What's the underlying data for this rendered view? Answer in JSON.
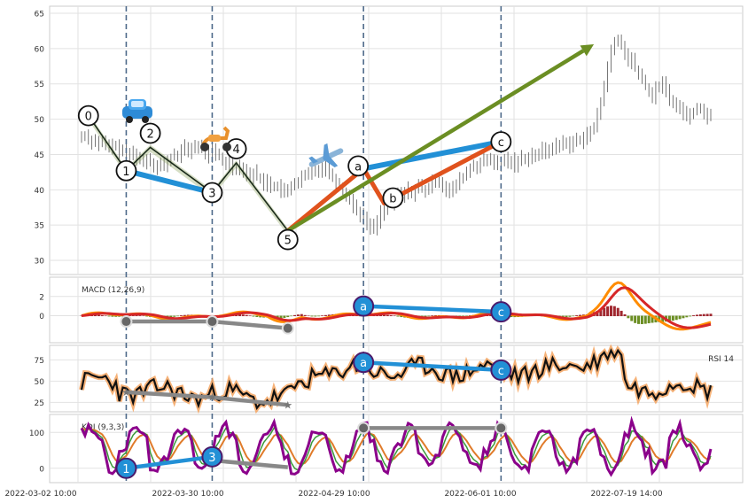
{
  "chart_data": {
    "type": "candlestick",
    "x_ticks": [
      "2022-03-02 10:00",
      "2022-03-30 10:00",
      "2022-04-29 10:00",
      "2022-06-01 10:00",
      "2022-07-19 14:00"
    ],
    "price": {
      "ylim": [
        28,
        66
      ],
      "yticks": [
        30,
        35,
        40,
        45,
        50,
        55,
        60,
        65
      ],
      "series": [
        47.5,
        47.8,
        47.2,
        46.8,
        47.0,
        46.5,
        46.9,
        46.2,
        45.8,
        46.4,
        46.0,
        45.5,
        45.9,
        45.2,
        44.8,
        45.3,
        44.6,
        44.2,
        43.9,
        44.5,
        44.0,
        43.6,
        43.2,
        43.8,
        43.4,
        43.9,
        44.6,
        45.1,
        44.7,
        45.5,
        46.0,
        45.4,
        45.9,
        46.3,
        45.7,
        46.1,
        45.3,
        44.9,
        45.6,
        45.0,
        44.6,
        44.1,
        43.5,
        43.9,
        43.2,
        42.8,
        43.4,
        42.9,
        42.3,
        41.8,
        42.5,
        41.9,
        41.4,
        40.8,
        41.3,
        40.6,
        40.2,
        40.7,
        39.9,
        39.4,
        40.0,
        40.6,
        41.2,
        40.8,
        41.7,
        42.3,
        41.9,
        42.6,
        43.1,
        42.7,
        43.4,
        43.0,
        42.4,
        41.8,
        41.2,
        40.5,
        39.9,
        39.2,
        38.6,
        37.8,
        37.1,
        36.5,
        35.8,
        35.2,
        34.8,
        34.5,
        35.6,
        36.8,
        37.5,
        38.2,
        37.9,
        38.8,
        39.4,
        38.9,
        39.6,
        40.1,
        39.5,
        40.0,
        40.6,
        40.1,
        39.7,
        40.3,
        41.0,
        41.6,
        41.2,
        40.6,
        40.1,
        39.5,
        40.2,
        40.8,
        41.4,
        41.9,
        42.5,
        43.0,
        43.6,
        43.2,
        43.8,
        44.3,
        43.9,
        44.5,
        43.8,
        43.2,
        43.9,
        44.4,
        43.8,
        44.2,
        43.6,
        44.1,
        44.6,
        44.2,
        44.8,
        45.1,
        44.6,
        45.2,
        45.7,
        45.3,
        45.8,
        46.2,
        45.9,
        46.4,
        46.9,
        46.5,
        46.1,
        46.8,
        47.2,
        46.9,
        47.5,
        47.9,
        48.3,
        48.8,
        50.5,
        52.5,
        55.0,
        57.5,
        59.5,
        60.8,
        61.2,
        60.5,
        59.2,
        58.0,
        58.6,
        57.2,
        56.4,
        55.4,
        54.6,
        53.8,
        53.2,
        54.2,
        54.8,
        55.0,
        54.1,
        53.0,
        52.2,
        51.4,
        51.8,
        51.0,
        50.2,
        50.6,
        51.2,
        51.8,
        51.4,
        50.8,
        50.4,
        51.0
      ]
    },
    "waves": [
      {
        "label": "0",
        "x": 2,
        "y": 50.5
      },
      {
        "label": "1",
        "x": 13,
        "y": 42.7
      },
      {
        "label": "2",
        "x": 20,
        "y": 46.0
      },
      {
        "label": "3",
        "x": 38,
        "y": 39.6
      },
      {
        "label": "4",
        "x": 45,
        "y": 43.8
      },
      {
        "label": "5",
        "x": 60,
        "y": 34.2
      },
      {
        "label": "a",
        "x": 82,
        "y": 43.0
      },
      {
        "label": "b",
        "x": 88,
        "y": 38.1
      },
      {
        "label": "c",
        "x": 122,
        "y": 46.8
      }
    ],
    "macd": {
      "label": "MACD (12,26,9)",
      "ylim": [
        -2.8,
        4.0
      ],
      "yticks": [
        0,
        2
      ]
    },
    "rsi": {
      "label": "RSI 14",
      "ylim": [
        14,
        92
      ],
      "yticks": [
        25,
        50,
        75
      ]
    },
    "kdj": {
      "label": "KDJ (9,3,3)",
      "ylim": [
        -40,
        150
      ],
      "yticks": [
        0,
        100
      ]
    },
    "divergences": [
      {
        "panel": "rsi",
        "labels": [
          "a",
          "c"
        ]
      },
      {
        "panel": "macd",
        "labels": [
          "a",
          "c"
        ]
      },
      {
        "panel": "kdj",
        "labels": [
          "1",
          "3"
        ]
      }
    ],
    "icons": [
      "car-icon",
      "scooter-icon",
      "airplane-icon"
    ],
    "colors": {
      "blue": "#2290d6",
      "orange_red": "#e0521d",
      "olive": "#6b8e23",
      "grey": "#888888",
      "purple": "#8b008b",
      "rsi_glow": "#f4a460",
      "macd_orange": "#ff8c00",
      "macd_red": "#d62728"
    }
  }
}
